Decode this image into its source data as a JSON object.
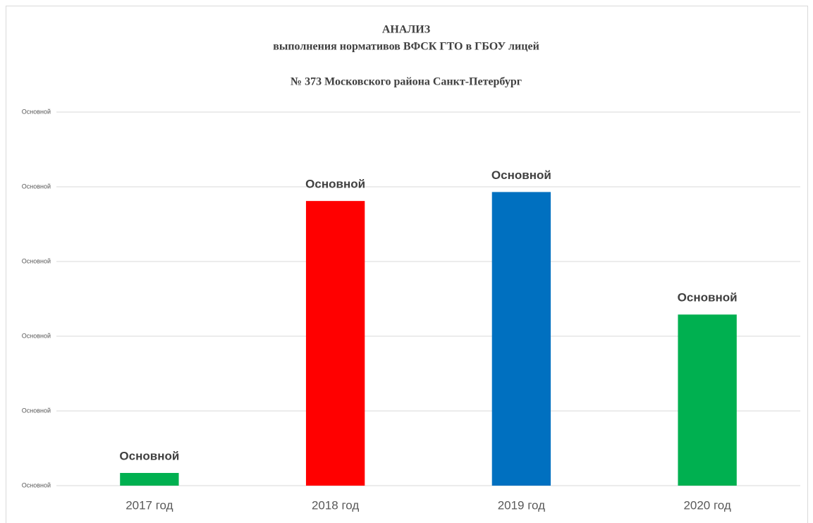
{
  "chart_data": {
    "type": "bar",
    "title": [
      "АНАЛИЗ",
      "выполнения нормативов ВФСК ГТО в ГБОУ лицей",
      "№ 373 Московского района Санкт-Петербург"
    ],
    "categories": [
      "2017 год",
      "2018 год",
      "2019 год",
      "2020 год"
    ],
    "values": [
      1.7,
      38.1,
      39.3,
      22.9
    ],
    "value_labels": [
      "Основной",
      "Основной",
      "Основной",
      "Основной"
    ],
    "colors": [
      "#00b050",
      "#ff0000",
      "#0070c0",
      "#00b050"
    ],
    "ylim": [
      0,
      50
    ],
    "yticks": [
      {
        "value": 0,
        "label": "Основной"
      },
      {
        "value": 10,
        "label": "Основной"
      },
      {
        "value": 20,
        "label": "Основной"
      },
      {
        "value": 30,
        "label": "Основной"
      },
      {
        "value": 40,
        "label": "Основной"
      },
      {
        "value": 50,
        "label": "Основной"
      }
    ],
    "grid": true
  }
}
